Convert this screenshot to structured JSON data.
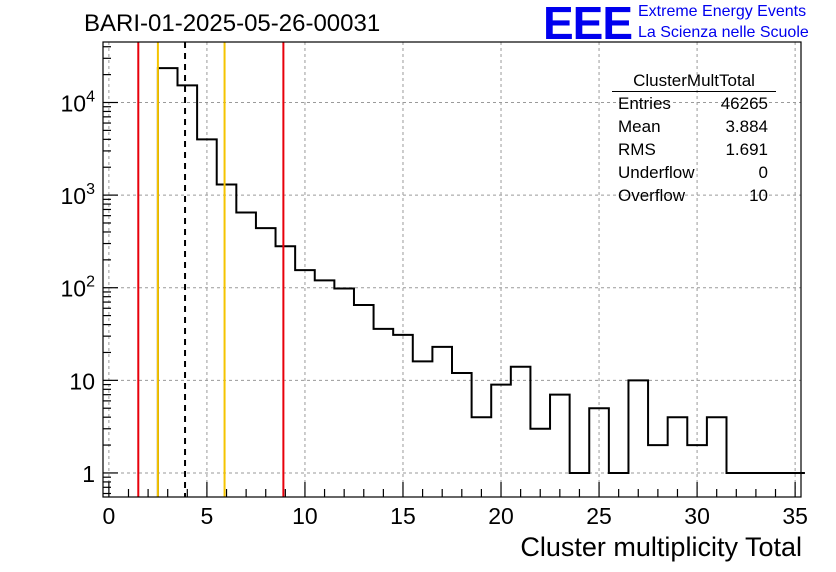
{
  "page": {
    "run_id": "BARI-01-2025-05-26-00031",
    "logo": {
      "mark": "EEE",
      "line1": "Extreme Energy Events",
      "line2": "La Scienza nelle Scuole",
      "color": "#0000ee"
    }
  },
  "stats_box": {
    "title": "ClusterMultTotal",
    "rows": [
      {
        "label": "Entries",
        "value": "46265"
      },
      {
        "label": "Mean",
        "value": "3.884"
      },
      {
        "label": "RMS",
        "value": "1.691"
      },
      {
        "label": "Underflow",
        "value": "0"
      },
      {
        "label": "Overflow",
        "value": "10"
      }
    ]
  },
  "chart_data": {
    "type": "histogram",
    "title": "BARI-01-2025-05-26-00031",
    "xlabel": "Cluster multiplicity Total",
    "ylabel": "",
    "xlim": [
      -0.3,
      35.3
    ],
    "ylim": [
      0.55,
      45000
    ],
    "yscale": "log",
    "grid": true,
    "x_ticks": [
      0,
      5,
      10,
      15,
      20,
      25,
      30,
      35
    ],
    "y_ticks": [
      {
        "value": 1,
        "base": "1",
        "exp": ""
      },
      {
        "value": 10,
        "base": "10",
        "exp": ""
      },
      {
        "value": 100,
        "base": "10",
        "exp": "2"
      },
      {
        "value": 1000,
        "base": "10",
        "exp": "3"
      },
      {
        "value": 10000,
        "base": "10",
        "exp": "4"
      }
    ],
    "bin_width": 1,
    "bins_start": [
      2.5,
      3.5,
      4.5,
      5.5,
      6.5,
      7.5,
      8.5,
      9.5,
      10.5,
      11.5,
      12.5,
      13.5,
      14.5,
      15.5,
      16.5,
      17.5,
      18.5,
      19.5,
      20.5,
      21.5,
      22.5,
      23.5,
      24.5,
      25.5,
      26.5,
      27.5,
      28.5,
      29.5,
      30.5,
      31.5,
      32.5,
      33.5,
      34.5
    ],
    "counts": [
      23500,
      15300,
      4000,
      1300,
      650,
      440,
      280,
      155,
      120,
      98,
      65,
      36,
      31,
      16,
      23,
      12,
      4,
      9,
      14,
      3,
      7,
      1,
      5,
      1,
      10,
      2,
      4,
      2,
      4,
      1,
      1,
      1,
      1
    ],
    "vertical_lines": [
      {
        "x": 1.5,
        "color": "#e8000b",
        "style": "solid"
      },
      {
        "x": 2.5,
        "color": "#f5c400",
        "style": "solid"
      },
      {
        "x": 3.884,
        "color": "#000000",
        "style": "dashed"
      },
      {
        "x": 5.9,
        "color": "#f5c400",
        "style": "solid"
      },
      {
        "x": 8.9,
        "color": "#e8000b",
        "style": "solid"
      }
    ]
  }
}
